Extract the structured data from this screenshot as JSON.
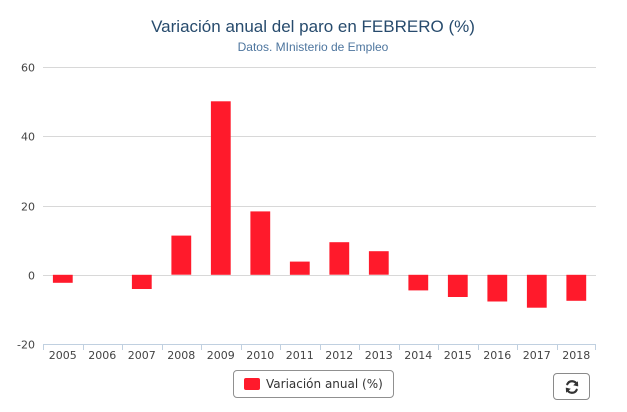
{
  "chart_data": {
    "type": "bar",
    "title": "Variación anual del paro en FEBRERO (%)",
    "subtitle": "Datos. MInisterio de Empleo",
    "categories": [
      "2005",
      "2006",
      "2007",
      "2008",
      "2009",
      "2010",
      "2011",
      "2012",
      "2013",
      "2014",
      "2015",
      "2016",
      "2017",
      "2018"
    ],
    "series": [
      {
        "name": "Variación anual (%)",
        "color": "#ff1a2b",
        "values": [
          -2.3,
          0,
          -4.1,
          11.3,
          50.1,
          18.3,
          3.8,
          9.4,
          6.8,
          -4.5,
          -6.4,
          -7.7,
          -9.5,
          -7.5
        ]
      }
    ],
    "ylim": [
      -20,
      60
    ],
    "yticks": [
      -20,
      0,
      20,
      40,
      60
    ],
    "grid": true,
    "legend": "bottom-center"
  },
  "toolbar": {
    "refresh_icon": "refresh-icon"
  }
}
